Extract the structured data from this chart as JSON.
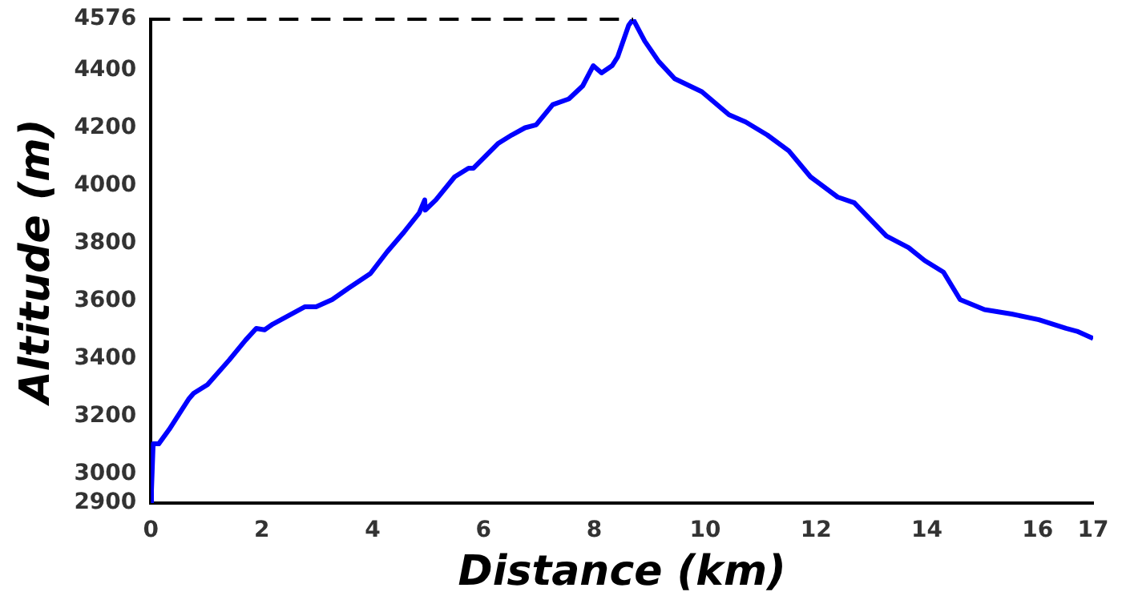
{
  "chart_data": {
    "type": "line",
    "xlabel": "Distance (km)",
    "ylabel": "Altitude (m)",
    "xlim": [
      0,
      17
    ],
    "xticks": [
      0,
      2,
      4,
      6,
      8,
      10,
      12,
      14,
      16,
      17
    ],
    "ylim": [
      2900,
      4576
    ],
    "yticks": [
      2900,
      3000,
      3200,
      3400,
      3600,
      3800,
      4000,
      4200,
      4400,
      4576
    ],
    "grid": false,
    "legend": false,
    "marker": "none",
    "line_style": "solid",
    "ref_lines": [
      {
        "axis": "y",
        "value": 4576,
        "line_style": "dashed",
        "color": "#000000"
      }
    ],
    "series": [
      {
        "color": "#0000ff",
        "x": [
          0,
          0.01,
          0.04,
          0.14,
          0.33,
          0.68,
          0.77,
          1.02,
          1.41,
          1.71,
          1.9,
          2.05,
          2.2,
          2.78,
          2.98,
          3.27,
          3.57,
          3.96,
          4.26,
          4.55,
          4.84,
          4.94,
          4.95,
          5.14,
          5.48,
          5.73,
          5.82,
          6.26,
          6.51,
          6.75,
          6.95,
          7.25,
          7.54,
          7.79,
          7.98,
          8.13,
          8.32,
          8.42,
          8.62,
          8.7,
          8.91,
          9.16,
          9.45,
          9.94,
          10.43,
          10.73,
          11.12,
          11.51,
          11.9,
          12.39,
          12.69,
          13.27,
          13.67,
          13.96,
          14.3,
          14.6,
          15.04,
          15.53,
          16.02,
          16.51,
          16.71,
          17
        ],
        "values": [
          2900,
          2945,
          3105,
          3105,
          3155,
          3260,
          3280,
          3310,
          3395,
          3465,
          3505,
          3500,
          3520,
          3580,
          3580,
          3605,
          3645,
          3695,
          3770,
          3835,
          3905,
          3950,
          3915,
          3950,
          4030,
          4060,
          4060,
          4145,
          4175,
          4200,
          4210,
          4280,
          4300,
          4345,
          4415,
          4390,
          4415,
          4445,
          4555,
          4576,
          4500,
          4430,
          4370,
          4325,
          4245,
          4220,
          4175,
          4120,
          4030,
          3960,
          3940,
          3825,
          3785,
          3740,
          3700,
          3605,
          3570,
          3555,
          3535,
          3505,
          3495,
          3470
        ]
      }
    ]
  }
}
